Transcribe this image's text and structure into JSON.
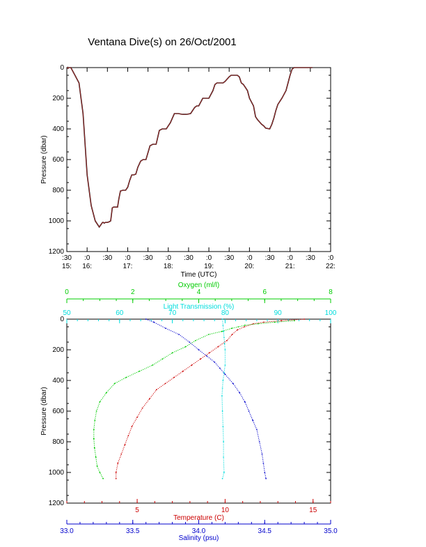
{
  "title": "Ventana Dive(s) on 26/Oct/2001",
  "chart_data": [
    {
      "type": "line",
      "name": "time-series",
      "xlabel": "Time (UTC)",
      "ylabel": "Pressure (dbar)",
      "xlim": [
        15.5,
        22.0
      ],
      "ylim": [
        1200,
        0
      ],
      "y_ticks": [
        "0",
        "200",
        "400",
        "600",
        "800",
        "1000",
        "1200"
      ],
      "y_tick_values": [
        0,
        200,
        400,
        600,
        800,
        1000,
        1200
      ],
      "x_tick_values": [
        15.5,
        16.0,
        16.5,
        17.0,
        17.5,
        18.0,
        18.5,
        19.0,
        19.5,
        20.0,
        20.5,
        21.0,
        21.5,
        22.0
      ],
      "x_ticks_minute": [
        ":30",
        ":0",
        ":30",
        ":0",
        ":30",
        ":0",
        ":30",
        ":0",
        ":30",
        ":0",
        ":30",
        ":0",
        ":30",
        ":0"
      ],
      "x_ticks_hour": [
        "15:",
        "16:",
        "",
        "17:",
        "",
        "18:",
        "",
        "19:",
        "",
        "20:",
        "",
        "21:",
        "",
        "22:"
      ],
      "line_color": "#b52a2a",
      "series": [
        {
          "x": [
            15.51,
            15.52,
            15.53,
            15.55,
            15.6,
            15.7,
            15.8,
            15.9,
            16.0,
            16.1,
            16.2,
            16.3,
            16.38,
            16.4,
            16.42,
            16.45,
            16.5,
            16.55,
            16.58,
            16.6,
            16.62,
            16.65,
            16.75,
            16.78,
            16.82,
            16.88,
            16.95,
            17.0,
            17.05,
            17.1,
            17.15,
            17.2,
            17.25,
            17.32,
            17.38,
            17.45,
            17.55,
            17.62,
            17.7,
            17.78,
            17.85,
            17.95,
            18.0,
            18.05,
            18.15,
            18.2,
            18.25,
            18.35,
            18.4,
            18.45,
            18.55,
            18.65,
            18.7,
            18.75,
            18.85,
            19.0,
            19.1,
            19.15,
            19.2,
            19.3,
            19.35,
            19.4,
            19.5,
            19.55,
            19.6,
            19.7,
            19.75,
            19.8,
            19.85,
            19.9,
            19.95,
            20.0,
            20.1,
            20.15,
            20.2,
            20.3,
            20.35,
            20.4,
            20.5,
            20.55,
            20.6,
            20.65,
            20.7,
            20.8,
            20.9,
            20.95,
            21.0,
            21.05,
            21.1,
            21.15,
            21.2,
            21.25,
            21.3,
            21.38,
            21.45,
            21.5,
            21.55
          ],
          "y": [
            5,
            0,
            5,
            0,
            0,
            50,
            100,
            300,
            700,
            900,
            1000,
            1040,
            1010,
            1010,
            1015,
            1010,
            1010,
            1005,
            1000,
            960,
            915,
            910,
            910,
            860,
            805,
            800,
            800,
            780,
            735,
            700,
            700,
            695,
            650,
            610,
            600,
            600,
            510,
            500,
            500,
            410,
            400,
            400,
            380,
            360,
            300,
            300,
            300,
            305,
            305,
            305,
            300,
            260,
            250,
            250,
            200,
            200,
            150,
            110,
            100,
            100,
            100,
            90,
            60,
            50,
            50,
            50,
            60,
            100,
            110,
            130,
            150,
            200,
            250,
            320,
            340,
            370,
            380,
            395,
            400,
            370,
            330,
            280,
            240,
            200,
            150,
            100,
            50,
            10,
            0,
            0,
            0,
            0,
            0,
            0,
            0,
            0,
            0
          ]
        }
      ]
    },
    {
      "type": "line",
      "name": "profiles",
      "ylabel": "Pressure (dbar)",
      "ylim": [
        1200,
        0
      ],
      "y_ticks": [
        "0",
        "200",
        "400",
        "600",
        "800",
        "1000",
        "1200"
      ],
      "y_tick_values": [
        0,
        200,
        400,
        600,
        800,
        1000,
        1200
      ],
      "axes": {
        "oxygen": {
          "label": "Oxygen (ml/l)",
          "range": [
            0,
            8
          ],
          "ticks": [
            "0",
            "2",
            "4",
            "6",
            "8"
          ],
          "tick_values": [
            0,
            2,
            4,
            6,
            8
          ],
          "color": "#00cc00"
        },
        "light": {
          "label": "Light Transmission (%)",
          "range": [
            50,
            100
          ],
          "ticks": [
            "50",
            "60",
            "70",
            "80",
            "90",
            "100"
          ],
          "tick_values": [
            50,
            60,
            70,
            80,
            90,
            100
          ],
          "color": "#00dddd"
        },
        "temperature": {
          "label": "Temperature (C)",
          "range": [
            1.0,
            16.0
          ],
          "ticks": [
            "5",
            "10",
            "15"
          ],
          "tick_values": [
            5,
            10,
            15
          ],
          "color": "#cc0000"
        },
        "salinity": {
          "label": "Salinity (psu)",
          "range": [
            33.0,
            35.0
          ],
          "ticks": [
            "33.0",
            "33.5",
            "34.0",
            "34.5",
            "35.0"
          ],
          "tick_values": [
            33.0,
            33.5,
            34.0,
            34.5,
            35.0
          ],
          "color": "#0000cc"
        }
      },
      "series": [
        {
          "axis": "oxygen",
          "color": "#00cc00",
          "x": [
            6.9,
            6.3,
            5.8,
            5.4,
            5.2,
            5.0,
            4.7,
            4.3,
            3.9,
            3.6,
            3.2,
            2.9,
            2.6,
            2.2,
            1.8,
            1.45,
            1.2,
            1.0,
            0.9,
            0.85,
            0.82,
            0.82,
            0.84,
            0.88,
            0.92,
            1.0,
            1.1
          ],
          "y": [
            10,
            20,
            30,
            40,
            50,
            60,
            80,
            100,
            140,
            180,
            220,
            260,
            300,
            340,
            380,
            420,
            480,
            540,
            600,
            660,
            720,
            780,
            840,
            900,
            960,
            1000,
            1040
          ]
        },
        {
          "axis": "light",
          "color": "#00dddd",
          "x": [
            79.5,
            79.6,
            79.7,
            79.8,
            79.9,
            80.0,
            80.0,
            79.8,
            79.6,
            79.5,
            79.4,
            79.5,
            79.6,
            79.7,
            79.7,
            79.8,
            79.5
          ],
          "y": [
            0,
            40,
            80,
            120,
            160,
            200,
            300,
            350,
            400,
            450,
            500,
            600,
            700,
            800,
            900,
            1000,
            1040
          ]
        },
        {
          "axis": "temperature",
          "color": "#cc0000",
          "x": [
            14.5,
            13.2,
            12.2,
            11.6,
            11.1,
            10.7,
            10.4,
            10.1,
            9.6,
            9.1,
            8.6,
            8.1,
            7.6,
            7.1,
            6.6,
            6.1,
            5.7,
            5.3,
            5.0,
            4.7,
            4.5,
            4.3,
            4.1,
            3.9,
            3.8,
            3.8
          ],
          "y": [
            0,
            10,
            20,
            30,
            50,
            70,
            100,
            140,
            180,
            220,
            260,
            300,
            340,
            380,
            420,
            460,
            520,
            580,
            640,
            700,
            760,
            820,
            880,
            940,
            1000,
            1040
          ]
        },
        {
          "axis": "salinity",
          "color": "#0000cc",
          "x": [
            33.6,
            33.66,
            33.75,
            33.85,
            33.93,
            34.0,
            34.06,
            34.12,
            34.16,
            34.2,
            34.26,
            34.31,
            34.35,
            34.38,
            34.41,
            34.44,
            34.46,
            34.48,
            34.49,
            34.5,
            34.51
          ],
          "y": [
            0,
            20,
            60,
            100,
            150,
            200,
            240,
            280,
            320,
            360,
            420,
            480,
            540,
            600,
            660,
            720,
            800,
            880,
            940,
            1000,
            1040
          ]
        }
      ]
    }
  ]
}
